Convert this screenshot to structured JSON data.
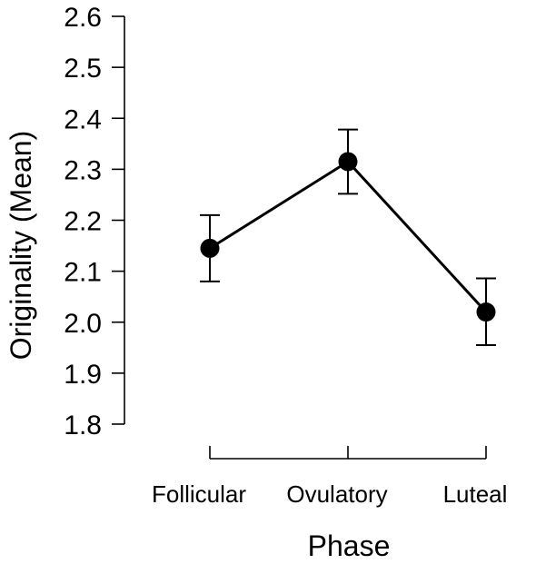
{
  "chart_data": {
    "type": "line",
    "xlabel": "Phase",
    "ylabel": "Originality (Mean)",
    "categories": [
      "Follicular",
      "Ovulatory",
      "Luteal"
    ],
    "values": [
      2.145,
      2.315,
      2.02
    ],
    "error_bars": [
      {
        "low": 2.08,
        "high": 2.21
      },
      {
        "low": 2.252,
        "high": 2.378
      },
      {
        "low": 1.955,
        "high": 2.086
      }
    ],
    "ylim": [
      1.8,
      2.6
    ],
    "yticks": [
      "1.8",
      "1.9",
      "2.0",
      "2.1",
      "2.2",
      "2.3",
      "2.4",
      "2.5",
      "2.6"
    ],
    "grid": false,
    "legend": "none"
  }
}
